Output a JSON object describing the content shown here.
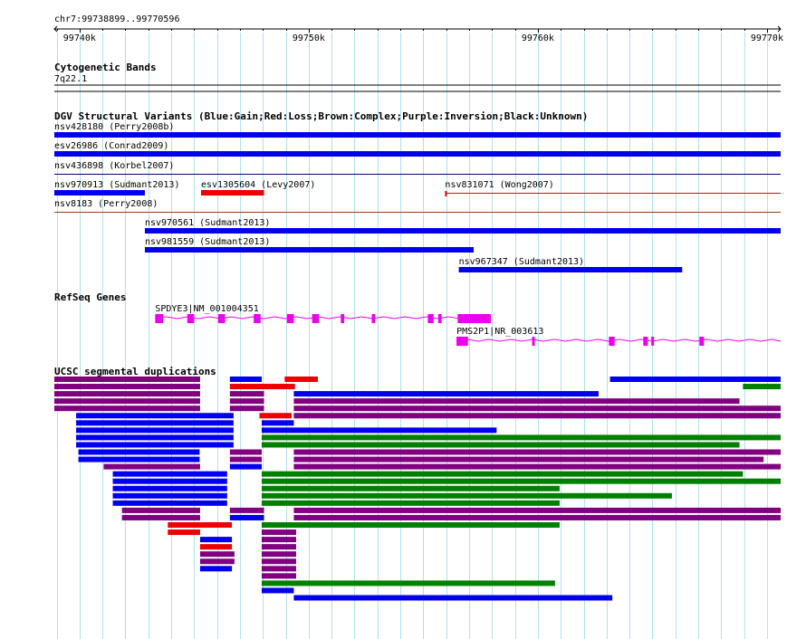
{
  "ruler": {
    "locus": "chr7:99738899..99770596",
    "start": 99738899,
    "end": 99770596,
    "tick_labels": [
      "99740k",
      "99750k",
      "99760k",
      "99770k"
    ],
    "tick_values": [
      99740000,
      99750000,
      99760000,
      99770000
    ]
  },
  "colors": {
    "gain": "#0000ee",
    "loss": "#ee0000",
    "complex": "#8b4513",
    "inversion": "#800080",
    "unknown": "#000080",
    "gene": "#ee00ee",
    "seg_blue": "#0000ee",
    "seg_red": "#ee0000",
    "seg_purple": "#800080",
    "seg_green": "#008000",
    "grid": "#b0e0f0"
  },
  "tracks": {
    "cytobands": {
      "title": "Cytogenetic Bands",
      "band_label": "7q22.1"
    },
    "dgv": {
      "title": "DGV Structural Variants (Blue:Gain;Red:Loss;Brown:Complex;Purple:Inversion;Black:Unknown)",
      "features": [
        {
          "label": "nsv428180 (Perry2008b)",
          "start": 99738899,
          "end": 99770596,
          "color": "gain",
          "style": "thick",
          "row": 0
        },
        {
          "label": "esv26986 (Conrad2009)",
          "start": 99738899,
          "end": 99770596,
          "color": "gain",
          "style": "thick",
          "row": 1
        },
        {
          "label": "nsv436898 (Korbel2007)",
          "start": 99738899,
          "end": 99770596,
          "color": "unknown",
          "style": "thin",
          "row": 2
        },
        {
          "label": "nsv970913 (Sudmant2013)",
          "start": 99738899,
          "end": 99742850,
          "color": "gain",
          "style": "thick",
          "row": 3
        },
        {
          "label": "esv1305604 (Levy2007)",
          "start": 99745300,
          "end": 99748050,
          "color": "loss",
          "style": "thick",
          "row": 3
        },
        {
          "label": "nsv831071 (Wong2007)",
          "start": 99755950,
          "end": 99770596,
          "color": "loss",
          "style": "thin",
          "row": 3
        },
        {
          "label": "nsv8183 (Perry2008)",
          "start": 99738899,
          "end": 99770596,
          "color": "complex",
          "style": "thin",
          "row": 4
        },
        {
          "label": "nsv970561 (Sudmant2013)",
          "start": 99742850,
          "end": 99770596,
          "color": "gain",
          "style": "thick",
          "row": 5
        },
        {
          "label": "nsv981559 (Sudmant2013)",
          "start": 99742850,
          "end": 99757200,
          "color": "gain",
          "style": "thick",
          "row": 6
        },
        {
          "label": "nsv967347 (Sudmant2013)",
          "start": 99756550,
          "end": 99766300,
          "color": "gain",
          "style": "thick",
          "row": 7
        }
      ]
    },
    "refseq": {
      "title": "RefSeq Genes",
      "genes": [
        {
          "label": "SPDYE3|NM_001004351",
          "start": 99743300,
          "end": 99757950,
          "exons": [
            [
              99743300,
              99743650
            ],
            [
              99744700,
              99745000
            ],
            [
              99746050,
              99746350
            ],
            [
              99747600,
              99747900
            ],
            [
              99749050,
              99749350
            ],
            [
              99750150,
              99750450
            ],
            [
              99751400,
              99751550
            ],
            [
              99752750,
              99752900
            ],
            [
              99755200,
              99755450
            ],
            [
              99755650,
              99755800
            ],
            [
              99756500,
              99757950
            ]
          ]
        },
        {
          "label": "PMS2P1|NR_003613",
          "start": 99756450,
          "end": 99770596,
          "exons": [
            [
              99756450,
              99756950
            ],
            [
              99759750,
              99759850
            ],
            [
              99763100,
              99763350
            ],
            [
              99764600,
              99764800
            ],
            [
              99764950,
              99765050
            ],
            [
              99767050,
              99767250
            ]
          ]
        }
      ]
    },
    "segdups": {
      "title": "UCSC segmental duplications",
      "rows": [
        [
          {
            "start": 99738899,
            "end": 99745260,
            "color": "seg_purple"
          },
          {
            "start": 99746560,
            "end": 99747950,
            "color": "seg_blue"
          },
          {
            "start": 99748950,
            "end": 99750400,
            "color": "seg_red"
          },
          {
            "start": 99763150,
            "end": 99770596,
            "color": "seg_blue"
          }
        ],
        [
          {
            "start": 99738899,
            "end": 99745260,
            "color": "seg_purple"
          },
          {
            "start": 99746560,
            "end": 99749400,
            "color": "seg_red"
          },
          {
            "start": 99768950,
            "end": 99770900,
            "color": "seg_green"
          }
        ],
        [
          {
            "start": 99738899,
            "end": 99745260,
            "color": "seg_purple"
          },
          {
            "start": 99746560,
            "end": 99748050,
            "color": "seg_purple"
          },
          {
            "start": 99749350,
            "end": 99762650,
            "color": "seg_blue"
          }
        ],
        [
          {
            "start": 99738899,
            "end": 99745260,
            "color": "seg_purple"
          },
          {
            "start": 99746560,
            "end": 99748050,
            "color": "seg_purple"
          },
          {
            "start": 99749350,
            "end": 99768800,
            "color": "seg_purple"
          }
        ],
        [
          {
            "start": 99738899,
            "end": 99745260,
            "color": "seg_purple"
          },
          {
            "start": 99746560,
            "end": 99748050,
            "color": "seg_purple"
          },
          {
            "start": 99749350,
            "end": 99770596,
            "color": "seg_purple"
          }
        ],
        [
          {
            "start": 99739850,
            "end": 99746720,
            "color": "seg_blue"
          },
          {
            "start": 99747850,
            "end": 99749250,
            "color": "seg_red"
          },
          {
            "start": 99749350,
            "end": 99770596,
            "color": "seg_purple"
          }
        ],
        [
          {
            "start": 99739850,
            "end": 99746720,
            "color": "seg_blue"
          },
          {
            "start": 99747950,
            "end": 99749350,
            "color": "seg_blue"
          }
        ],
        [
          {
            "start": 99739850,
            "end": 99746720,
            "color": "seg_blue"
          },
          {
            "start": 99747950,
            "end": 99758200,
            "color": "seg_blue"
          }
        ],
        [
          {
            "start": 99739850,
            "end": 99746720,
            "color": "seg_blue"
          },
          {
            "start": 99747950,
            "end": 99770900,
            "color": "seg_green"
          }
        ],
        [
          {
            "start": 99739850,
            "end": 99746720,
            "color": "seg_blue"
          },
          {
            "start": 99747950,
            "end": 99768800,
            "color": "seg_green"
          }
        ],
        [
          {
            "start": 99739950,
            "end": 99745240,
            "color": "seg_blue"
          },
          {
            "start": 99746560,
            "end": 99747950,
            "color": "seg_purple"
          },
          {
            "start": 99749350,
            "end": 99770800,
            "color": "seg_purple"
          }
        ],
        [
          {
            "start": 99739950,
            "end": 99745240,
            "color": "seg_blue"
          },
          {
            "start": 99746560,
            "end": 99747950,
            "color": "seg_purple"
          },
          {
            "start": 99749350,
            "end": 99769850,
            "color": "seg_purple"
          }
        ],
        [
          {
            "start": 99741050,
            "end": 99745260,
            "color": "seg_purple"
          },
          {
            "start": 99746560,
            "end": 99747950,
            "color": "seg_blue"
          },
          {
            "start": 99749350,
            "end": 99770900,
            "color": "seg_purple"
          }
        ],
        [
          {
            "start": 99741450,
            "end": 99746440,
            "color": "seg_blue"
          },
          {
            "start": 99747950,
            "end": 99768950,
            "color": "seg_green"
          }
        ],
        [
          {
            "start": 99741450,
            "end": 99746440,
            "color": "seg_blue"
          },
          {
            "start": 99747950,
            "end": 99770900,
            "color": "seg_green"
          }
        ],
        [
          {
            "start": 99741450,
            "end": 99746440,
            "color": "seg_blue"
          },
          {
            "start": 99747950,
            "end": 99760950,
            "color": "seg_green"
          }
        ],
        [
          {
            "start": 99741450,
            "end": 99746440,
            "color": "seg_blue"
          },
          {
            "start": 99747950,
            "end": 99765850,
            "color": "seg_green"
          }
        ],
        [
          {
            "start": 99741450,
            "end": 99746440,
            "color": "seg_blue"
          },
          {
            "start": 99747950,
            "end": 99760950,
            "color": "seg_green"
          }
        ],
        [
          {
            "start": 99741850,
            "end": 99745260,
            "color": "seg_purple"
          },
          {
            "start": 99746560,
            "end": 99748050,
            "color": "seg_purple"
          },
          {
            "start": 99749350,
            "end": 99770800,
            "color": "seg_purple"
          }
        ],
        [
          {
            "start": 99741850,
            "end": 99745260,
            "color": "seg_purple"
          },
          {
            "start": 99746560,
            "end": 99748050,
            "color": "seg_blue"
          },
          {
            "start": 99749350,
            "end": 99770800,
            "color": "seg_purple"
          }
        ],
        [
          {
            "start": 99743850,
            "end": 99746650,
            "color": "seg_red"
          },
          {
            "start": 99747950,
            "end": 99760950,
            "color": "seg_green"
          }
        ],
        [
          {
            "start": 99743850,
            "end": 99745260,
            "color": "seg_red"
          },
          {
            "start": 99747950,
            "end": 99749450,
            "color": "seg_purple"
          }
        ],
        [
          {
            "start": 99745260,
            "end": 99746650,
            "color": "seg_blue"
          },
          {
            "start": 99747950,
            "end": 99749450,
            "color": "seg_purple"
          }
        ],
        [
          {
            "start": 99745260,
            "end": 99746650,
            "color": "seg_red"
          },
          {
            "start": 99747950,
            "end": 99749450,
            "color": "seg_purple"
          }
        ],
        [
          {
            "start": 99745260,
            "end": 99746760,
            "color": "seg_purple"
          },
          {
            "start": 99747950,
            "end": 99749450,
            "color": "seg_purple"
          }
        ],
        [
          {
            "start": 99745260,
            "end": 99746760,
            "color": "seg_purple"
          },
          {
            "start": 99747950,
            "end": 99749450,
            "color": "seg_purple"
          }
        ],
        [
          {
            "start": 99745260,
            "end": 99746650,
            "color": "seg_blue"
          },
          {
            "start": 99747950,
            "end": 99749450,
            "color": "seg_purple"
          }
        ],
        [
          {
            "start": 99747950,
            "end": 99749450,
            "color": "seg_purple"
          }
        ],
        [
          {
            "start": 99747950,
            "end": 99760750,
            "color": "seg_green"
          }
        ],
        [
          {
            "start": 99747950,
            "end": 99749350,
            "color": "seg_blue"
          }
        ],
        [
          {
            "start": 99749350,
            "end": 99763250,
            "color": "seg_blue"
          }
        ]
      ]
    }
  }
}
